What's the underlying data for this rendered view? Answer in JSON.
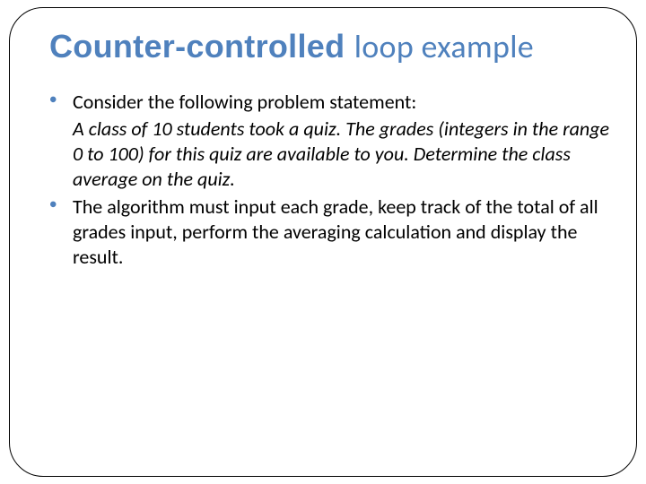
{
  "slide": {
    "title_bold": "Counter-controlled ",
    "title_rest": "loop example",
    "colors": {
      "accent": "#4f81bd",
      "text": "#000000",
      "background": "#ffffff",
      "border": "#000000"
    },
    "typography": {
      "title_fontsize": 36,
      "body_fontsize": 22,
      "title_font": "Arial/Calibri",
      "body_font": "Calibri"
    },
    "bullets": [
      {
        "lead": "Consider the following problem statement:",
        "sub_italic": "A class of 10 students took a quiz. The grades (integers in the range 0 to 100) for this quiz are available to you. Determine the class average on the quiz."
      },
      {
        "lead": "The algorithm must input each grade, keep track of the total of all grades input, perform the averaging calculation and display the result."
      }
    ],
    "frame": {
      "border_radius": 38,
      "border_width": 1.5
    }
  }
}
